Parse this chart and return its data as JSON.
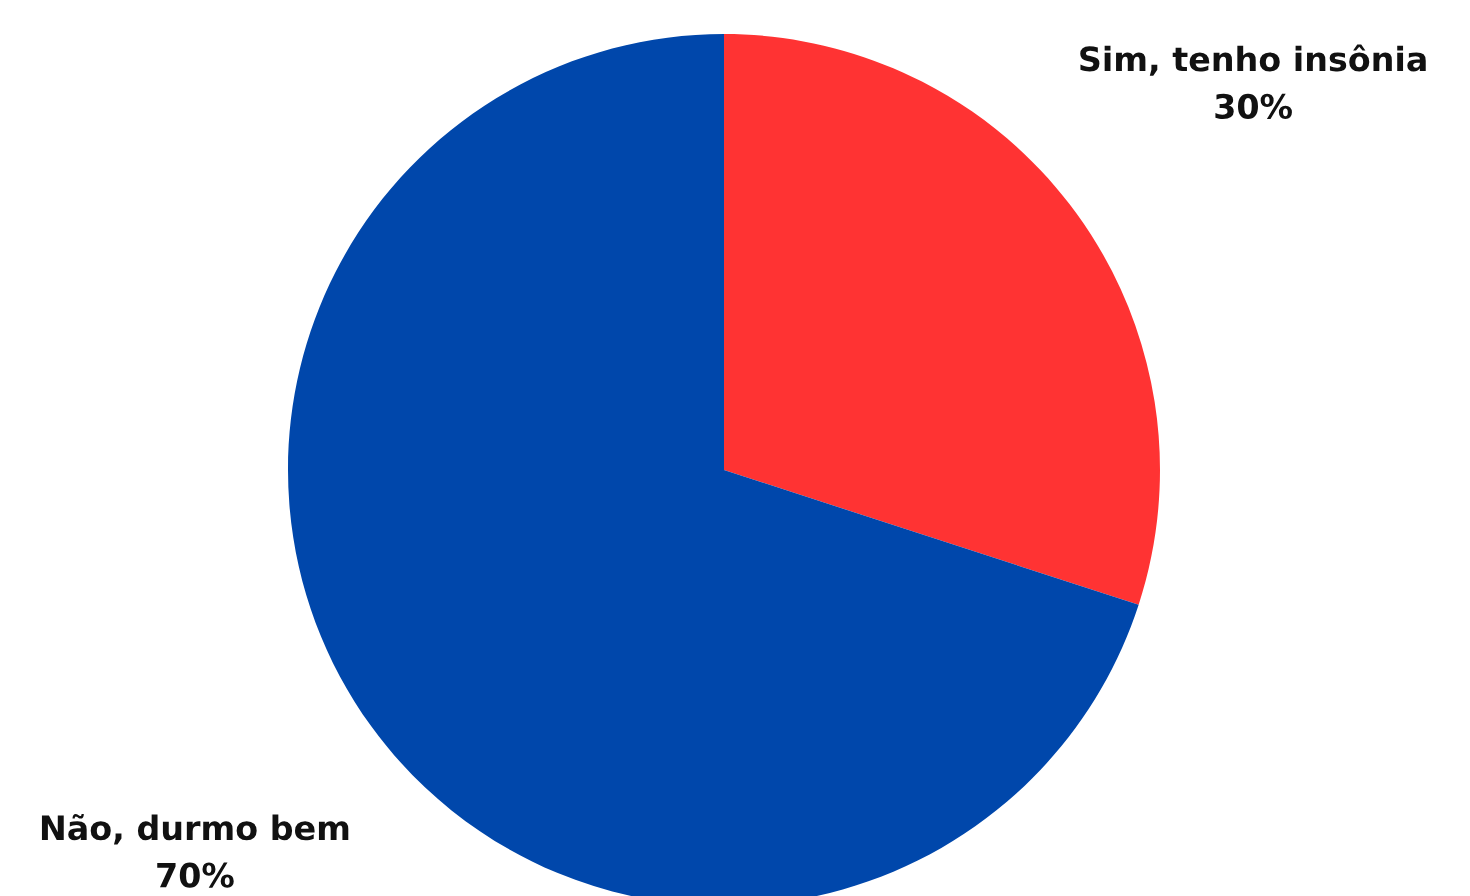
{
  "chart_data": {
    "type": "pie",
    "categories": [
      "Sim, tenho insônia",
      "Não, durmo bem"
    ],
    "values": [
      30,
      70
    ],
    "value_labels": [
      "30%",
      "70%"
    ],
    "colors": [
      "#ff3333",
      "#0047ab"
    ],
    "legend": false
  }
}
